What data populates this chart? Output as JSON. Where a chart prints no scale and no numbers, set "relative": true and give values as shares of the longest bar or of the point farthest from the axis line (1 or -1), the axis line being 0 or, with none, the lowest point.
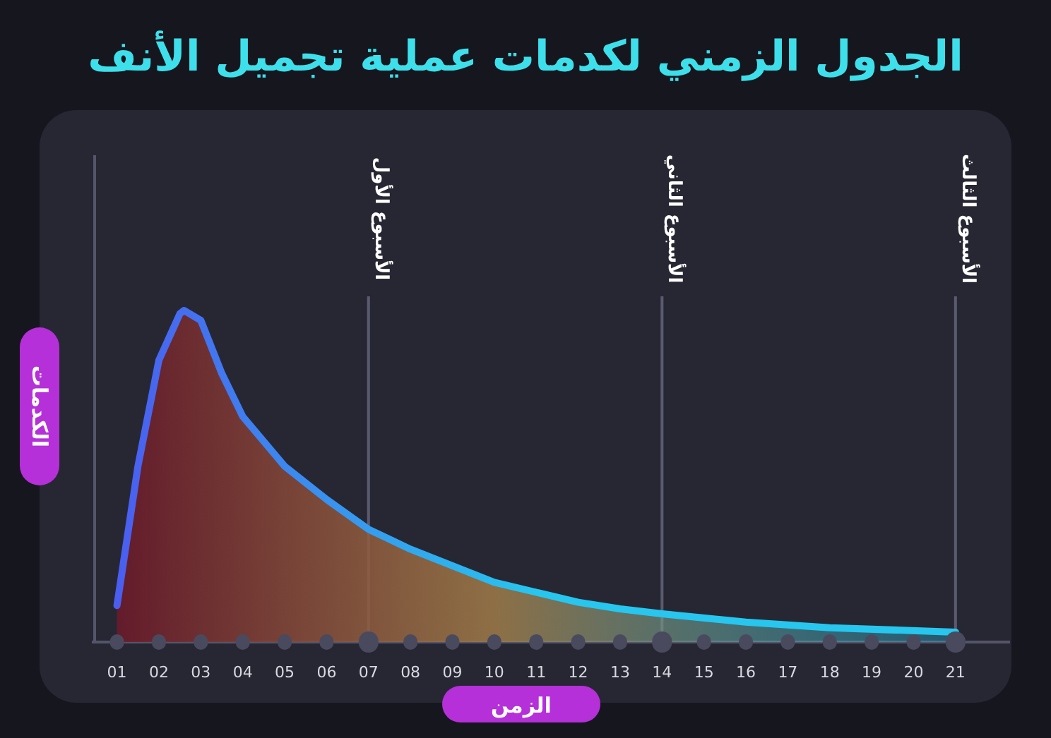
{
  "chart_data": {
    "type": "area",
    "title": "الجدول الزمني لكدمات عملية تجميل الأنف",
    "xlabel": "الزمن",
    "ylabel": "الكدمات",
    "relative": true,
    "x": [
      1,
      1.5,
      2,
      2.5,
      2.6,
      3,
      3.5,
      4,
      5,
      6,
      7,
      8,
      9,
      10,
      11,
      12,
      13,
      14,
      16,
      18,
      21
    ],
    "series": [
      {
        "color": "#27c6ee",
        "values": [
          0.11,
          0.53,
          0.85,
          0.99,
          1,
          0.97,
          0.81,
          0.68,
          0.53,
          0.43,
          0.34,
          0.28,
          0.23,
          0.18,
          0.15,
          0.12,
          0.1,
          0.085,
          0.06,
          0.043,
          0.03
        ]
      }
    ],
    "xlim": [
      0.4,
      22.3
    ],
    "xticks": [
      {
        "value": 1,
        "label": "01"
      },
      {
        "value": 2,
        "label": "02"
      },
      {
        "value": 3,
        "label": "03"
      },
      {
        "value": 4,
        "label": "04"
      },
      {
        "value": 5,
        "label": "05"
      },
      {
        "value": 6,
        "label": "06"
      },
      {
        "value": 7,
        "label": "07"
      },
      {
        "value": 8,
        "label": "08"
      },
      {
        "value": 9,
        "label": "09"
      },
      10,
      11,
      12,
      13,
      14,
      15,
      16,
      17,
      18,
      19,
      20,
      21
    ],
    "ref_lines": [
      {
        "axis": "x",
        "value": 7,
        "label": "الأسبوع الأول"
      },
      {
        "axis": "x",
        "value": 14,
        "label": "الأسبوع الثاني"
      },
      {
        "axis": "x",
        "value": 21,
        "label": "الأسبوع الثالث"
      }
    ]
  }
}
